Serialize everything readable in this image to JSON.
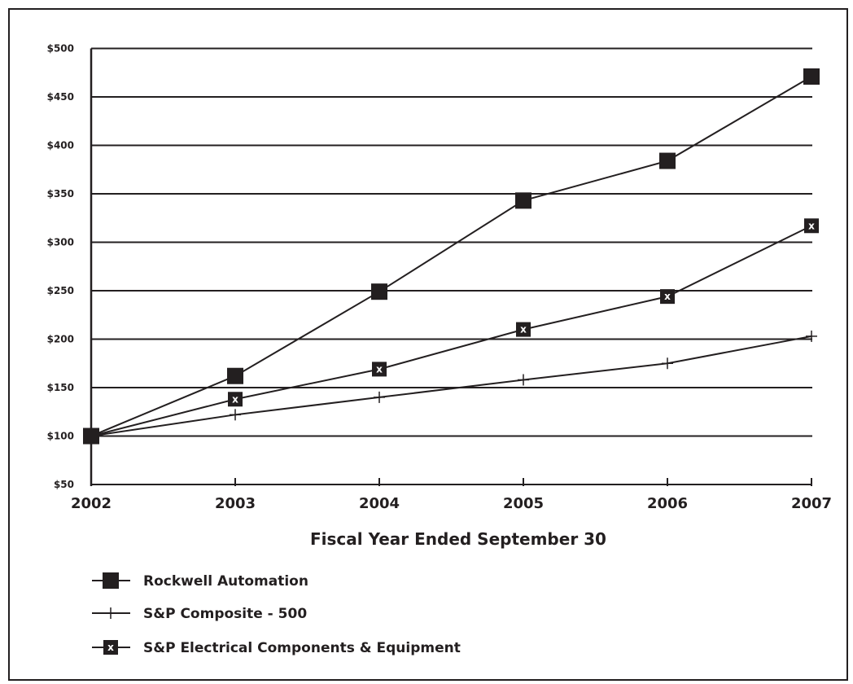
{
  "chart_data": {
    "type": "line",
    "xlabel": "Fiscal Year Ended September 30",
    "ylabel": "",
    "x": [
      "2002",
      "2003",
      "2004",
      "2005",
      "2006",
      "2007"
    ],
    "ylim": [
      50,
      500
    ],
    "yticks": [
      50,
      100,
      150,
      200,
      250,
      300,
      350,
      400,
      450,
      500
    ],
    "ytick_labels": [
      "$50",
      "$100",
      "$150",
      "$200",
      "$250",
      "$300",
      "$350",
      "$400",
      "$450",
      "$500"
    ],
    "grid": true,
    "legend_position": "bottom-left",
    "series": [
      {
        "name": "Rockwell Automation",
        "marker": "filled-square",
        "values": [
          100,
          162,
          249,
          343,
          384,
          471
        ]
      },
      {
        "name": "S&P Composite - 500",
        "marker": "plus",
        "values": [
          100,
          122,
          140,
          158,
          175,
          203
        ]
      },
      {
        "name": "S&P Electrical Components & Equipment",
        "marker": "x-square",
        "marker_text": "x",
        "values": [
          100,
          138,
          169,
          210,
          244,
          317
        ]
      }
    ],
    "colors": {
      "line": "#231f20",
      "background": "#ffffff"
    }
  }
}
